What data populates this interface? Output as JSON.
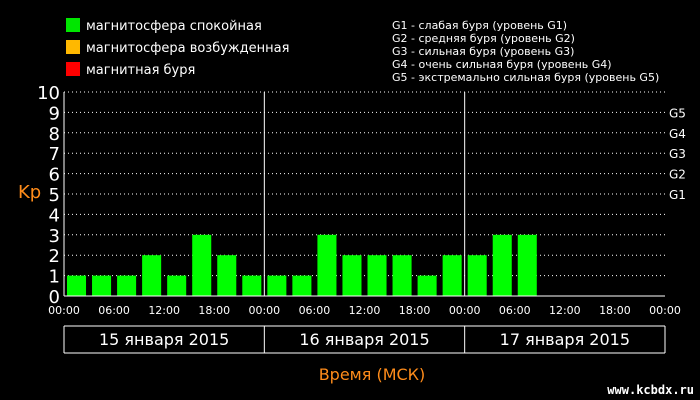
{
  "legend": {
    "items": [
      {
        "label": "магнитосфера спокойная",
        "color": "#00e600"
      },
      {
        "label": "магнитосфера возбужденная",
        "color": "#ffb800"
      },
      {
        "label": "магнитная буря",
        "color": "#ff0000"
      }
    ],
    "storm_levels": [
      "G1 - слабая буря (уровень G1)",
      "G2 - средняя буря (уровень G2)",
      "G3 - сильная буря (уровень G3)",
      "G4 - очень сильная буря (уровень G4)",
      "G5 - экстремально сильная буря (уровень G5)"
    ]
  },
  "watermark": "www.kcbdx.ru",
  "chart_data": {
    "type": "bar",
    "ylabel": "Kp",
    "xlabel": "Время (МСК)",
    "ylim": [
      0,
      10
    ],
    "yticks": [
      "0",
      "1",
      "2",
      "3",
      "4",
      "5",
      "6",
      "7",
      "8",
      "9",
      "10"
    ],
    "gticks": [
      {
        "label": "G1",
        "value": 5
      },
      {
        "label": "G2",
        "value": 6
      },
      {
        "label": "G3",
        "value": 7
      },
      {
        "label": "G4",
        "value": 8
      },
      {
        "label": "G5",
        "value": 9
      }
    ],
    "xticks": [
      "00:00",
      "06:00",
      "12:00",
      "18:00",
      "00:00",
      "06:00",
      "12:00",
      "18:00",
      "00:00",
      "06:00",
      "12:00",
      "18:00",
      "00:00"
    ],
    "days": [
      "15 января 2015",
      "16 января 2015",
      "17 января 2015"
    ],
    "bar_color": "#00ff00",
    "values": [
      1,
      1,
      1,
      2,
      1,
      3,
      2,
      1,
      1,
      1,
      3,
      2,
      2,
      2,
      1,
      2,
      2,
      3,
      3,
      null,
      null,
      null,
      null,
      null
    ],
    "grid": true
  }
}
